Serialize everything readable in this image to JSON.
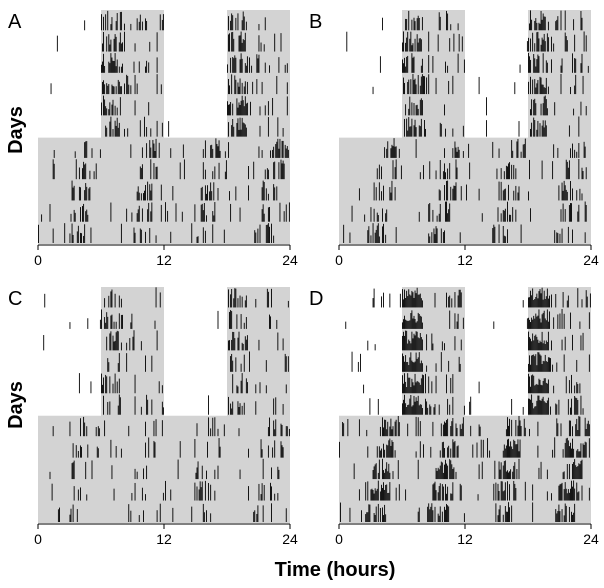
{
  "figure": {
    "xlabel": "Time (hours)",
    "ylabel": "Days"
  },
  "chart_data": [
    {
      "type": "actogram",
      "panel": "A",
      "x_ticks": [
        "0",
        "12",
        "24"
      ],
      "xlim": [
        0,
        24
      ],
      "days": 11,
      "light_dark_days": 6,
      "light_dark_cycle": "LD 6:6",
      "dark_phases_hours": [
        [
          6,
          12
        ],
        [
          18,
          24
        ]
      ],
      "constant_condition": "DD",
      "shading_color": "#d3d3d3",
      "activity_color": "#000000",
      "activity_density": 0.45
    },
    {
      "type": "actogram",
      "panel": "B",
      "x_ticks": [
        "0",
        "12",
        "24"
      ],
      "xlim": [
        0,
        24
      ],
      "days": 11,
      "light_dark_days": 6,
      "light_dark_cycle": "LD 6:6",
      "dark_phases_hours": [
        [
          6,
          12
        ],
        [
          18,
          24
        ]
      ],
      "constant_condition": "DD",
      "shading_color": "#d3d3d3",
      "activity_color": "#000000",
      "activity_density": 0.45
    },
    {
      "type": "actogram",
      "panel": "C",
      "x_ticks": [
        "0",
        "12",
        "24"
      ],
      "xlim": [
        0,
        24
      ],
      "days": 11,
      "light_dark_days": 6,
      "light_dark_cycle": "LD 6:6",
      "dark_phases_hours": [
        [
          6,
          12
        ],
        [
          18,
          24
        ]
      ],
      "constant_condition": "DD",
      "shading_color": "#d3d3d3",
      "activity_color": "#000000",
      "activity_density": 0.3
    },
    {
      "type": "actogram",
      "panel": "D",
      "x_ticks": [
        "0",
        "12",
        "24"
      ],
      "xlim": [
        0,
        24
      ],
      "days": 11,
      "light_dark_days": 6,
      "light_dark_cycle": "LD 6:6",
      "dark_phases_hours": [
        [
          6,
          12
        ],
        [
          18,
          24
        ]
      ],
      "constant_condition": "DD",
      "shading_color": "#d3d3d3",
      "activity_color": "#000000",
      "activity_density": 0.75
    }
  ]
}
